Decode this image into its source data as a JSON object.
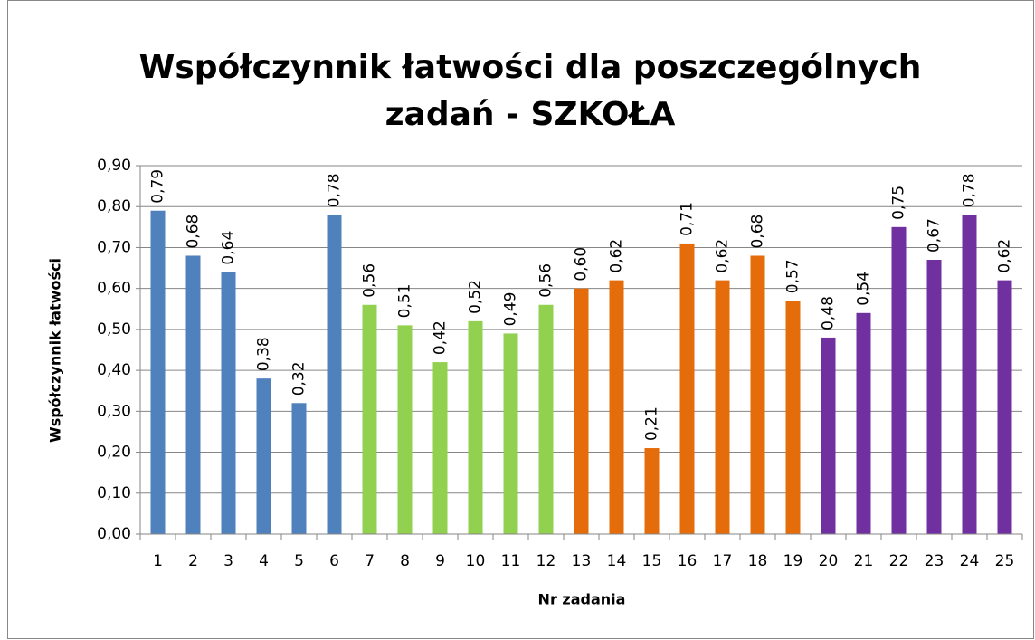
{
  "chart_data": {
    "type": "bar",
    "title": [
      "Współczynnik łatwości dla poszczególnych",
      "zadań - SZKOŁA"
    ],
    "x_label": "Nr zadania",
    "y_label": "Współczynnik łatwości",
    "categories": [
      "1",
      "2",
      "3",
      "4",
      "5",
      "6",
      "7",
      "8",
      "9",
      "10",
      "11",
      "12",
      "13",
      "14",
      "15",
      "16",
      "17",
      "18",
      "19",
      "20",
      "21",
      "22",
      "23",
      "24",
      "25"
    ],
    "values": [
      0.79,
      0.68,
      0.64,
      0.38,
      0.32,
      0.78,
      0.56,
      0.51,
      0.42,
      0.52,
      0.49,
      0.56,
      0.6,
      0.62,
      0.21,
      0.71,
      0.62,
      0.68,
      0.57,
      0.48,
      0.54,
      0.75,
      0.67,
      0.78,
      0.62
    ],
    "value_labels": [
      "0,79",
      "0,68",
      "0,64",
      "0,38",
      "0,32",
      "0,78",
      "0,56",
      "0,51",
      "0,42",
      "0,52",
      "0,49",
      "0,56",
      "0,60",
      "0,62",
      "0,21",
      "0,71",
      "0,62",
      "0,68",
      "0,57",
      "0,48",
      "0,54",
      "0,75",
      "0,67",
      "0,78",
      "0,62"
    ],
    "colors": [
      "#4f81bd",
      "#4f81bd",
      "#4f81bd",
      "#4f81bd",
      "#4f81bd",
      "#4f81bd",
      "#92d050",
      "#92d050",
      "#92d050",
      "#92d050",
      "#92d050",
      "#92d050",
      "#e46c0a",
      "#e46c0a",
      "#e46c0a",
      "#e46c0a",
      "#e46c0a",
      "#e46c0a",
      "#e46c0a",
      "#7030a0",
      "#7030a0",
      "#7030a0",
      "#7030a0",
      "#7030a0",
      "#7030a0"
    ],
    "ylim": [
      0,
      0.9
    ],
    "yticks": [
      {
        "value": 0,
        "label": "0,00"
      },
      {
        "value": 0.1,
        "label": "0,10"
      },
      {
        "value": 0.2,
        "label": "0,20"
      },
      {
        "value": 0.3,
        "label": "0,30"
      },
      {
        "value": 0.4,
        "label": "0,40"
      },
      {
        "value": 0.5,
        "label": "0,50"
      },
      {
        "value": 0.6,
        "label": "0,60"
      },
      {
        "value": 0.7,
        "label": "0,70"
      },
      {
        "value": 0.8,
        "label": "0,80"
      },
      {
        "value": 0.9,
        "label": "0,90"
      }
    ],
    "grid": true
  }
}
